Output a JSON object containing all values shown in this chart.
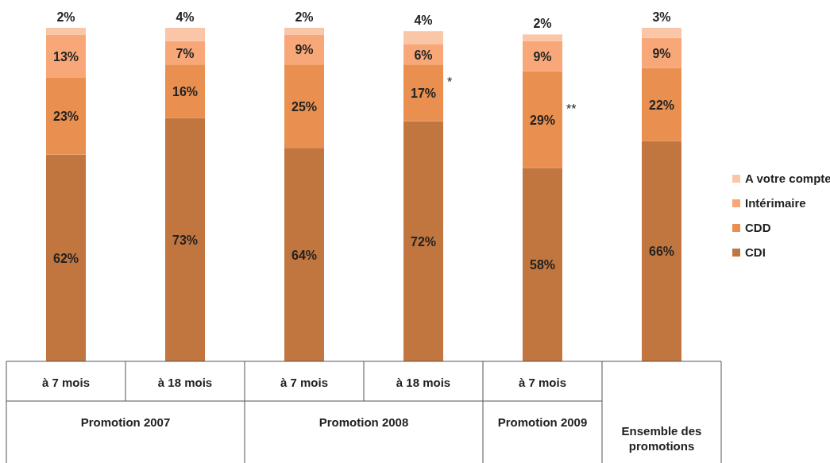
{
  "chart_data": {
    "type": "bar",
    "stacked": true,
    "legend": "right",
    "categories": [
      "à 7 mois",
      "à 18 mois",
      "à 7 mois",
      "à 18 mois",
      "à 7 mois",
      null
    ],
    "series": [
      {
        "name": "CDI",
        "color": "#c0763e",
        "values": [
          62,
          73,
          64,
          72,
          58,
          66
        ],
        "value_labels": [
          "62%",
          "73%",
          "64%",
          "72%",
          "58%",
          "66%"
        ]
      },
      {
        "name": "CDD",
        "color": "#e98f4f",
        "values": [
          23,
          16,
          25,
          17,
          29,
          22
        ],
        "value_labels": [
          "23%",
          "16%",
          "25%",
          "17%",
          "29%",
          "22%"
        ]
      },
      {
        "name": "Intérimaire",
        "color": "#f8a878",
        "values": [
          13,
          7,
          9,
          6,
          9,
          9
        ],
        "value_labels": [
          "13%",
          "7%",
          "9%",
          "6%",
          "9%",
          "9%"
        ]
      },
      {
        "name": "A votre compte",
        "color": "#fbc6a7",
        "values": [
          2,
          4,
          2,
          4,
          2,
          3
        ],
        "value_labels": [
          "2%",
          "4%",
          "2%",
          "4%",
          "2%",
          "3%"
        ]
      }
    ],
    "annotations": [
      "Promotion 2007",
      "Promotion 2008",
      "Promotion 2009",
      "Ensemble des promotions",
      "*",
      "**"
    ]
  }
}
